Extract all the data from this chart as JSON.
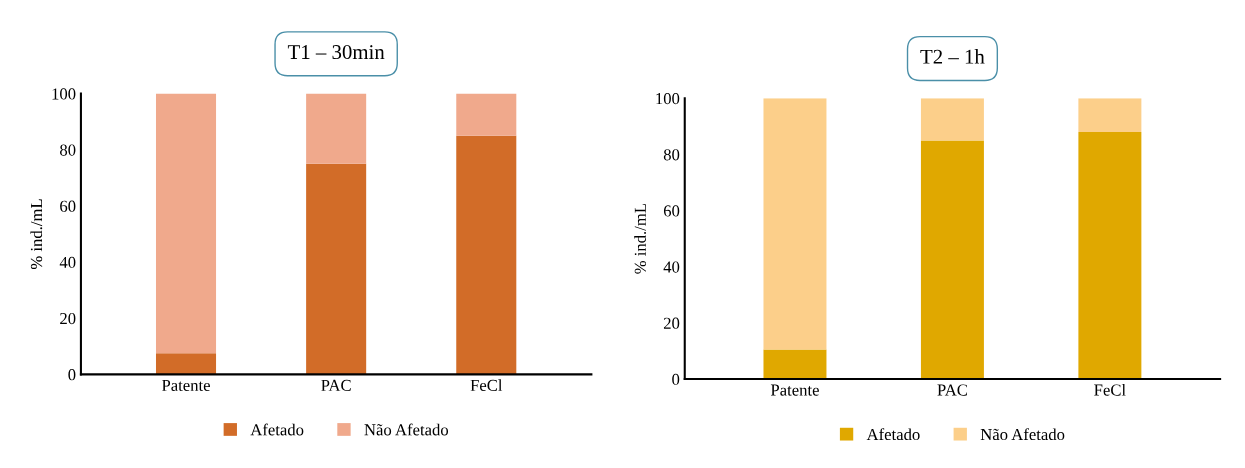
{
  "chart_data": [
    {
      "type": "bar",
      "title": "T1 – 30min",
      "ylabel": "% ind./mL",
      "categories": [
        "Patente",
        "PAC",
        "FeCl"
      ],
      "stacked": true,
      "ylim": [
        0,
        100
      ],
      "yticks": [
        0,
        20,
        40,
        60,
        80,
        100
      ],
      "legend": "bottom",
      "grid": false,
      "series": [
        {
          "name": "Afetado",
          "color": "#d26c28",
          "values": [
            7.5,
            75,
            85
          ]
        },
        {
          "name": "Não Afetado",
          "color": "#f0a98c",
          "values": [
            92.5,
            25,
            15
          ]
        }
      ]
    },
    {
      "type": "bar",
      "title": "T2 – 1h",
      "ylabel": "% ind./mL",
      "categories": [
        "Patente",
        "PAC",
        "FeCl"
      ],
      "stacked": true,
      "ylim": [
        0,
        100
      ],
      "yticks": [
        0,
        20,
        40,
        60,
        80,
        100
      ],
      "legend": "bottom",
      "grid": false,
      "series": [
        {
          "name": "Afetado",
          "color": "#e0a800",
          "values": [
            10.5,
            85,
            88
          ]
        },
        {
          "name": "Não Afetado",
          "color": "#fccf8a",
          "values": [
            89.5,
            15,
            12
          ]
        }
      ]
    }
  ]
}
